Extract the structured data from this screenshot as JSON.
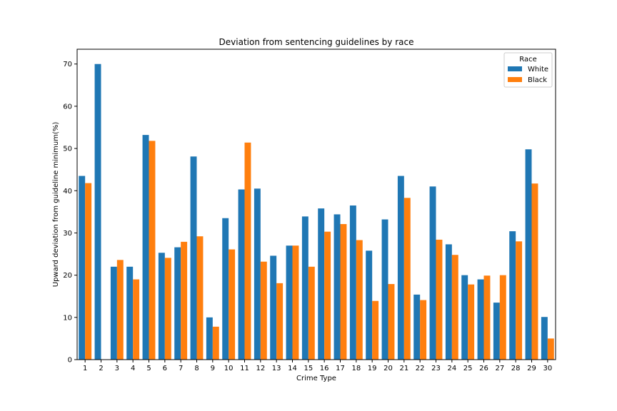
{
  "chart_data": {
    "type": "bar",
    "title": "Deviation from sentencing guidelines by race",
    "xlabel": "Crime Type",
    "ylabel": "Upward deviation from guideline minimum(%)",
    "categories": [
      "1",
      "2",
      "3",
      "4",
      "5",
      "6",
      "7",
      "8",
      "9",
      "10",
      "11",
      "12",
      "13",
      "14",
      "15",
      "16",
      "17",
      "18",
      "19",
      "20",
      "21",
      "22",
      "23",
      "24",
      "25",
      "26",
      "27",
      "28",
      "29",
      "30"
    ],
    "ylim": [
      0,
      73.5
    ],
    "yticks": [
      0,
      10,
      20,
      30,
      40,
      50,
      60,
      70
    ],
    "grid": false,
    "legend": {
      "title": "Race",
      "position": "top-right"
    },
    "series": [
      {
        "name": "White",
        "color": "#1f77b4",
        "values": [
          43.5,
          70.0,
          22.0,
          22.0,
          53.2,
          25.3,
          26.6,
          48.1,
          10.0,
          33.5,
          40.3,
          40.5,
          24.6,
          27.0,
          33.9,
          35.8,
          34.4,
          36.5,
          25.8,
          33.2,
          43.5,
          15.4,
          41.0,
          27.3,
          20.0,
          19.0,
          13.5,
          30.4,
          49.8,
          10.1
        ]
      },
      {
        "name": "Black",
        "color": "#ff7f0e",
        "values": [
          41.8,
          null,
          23.6,
          19.0,
          51.8,
          24.1,
          27.9,
          29.2,
          7.8,
          26.1,
          51.4,
          23.2,
          18.1,
          27.0,
          22.0,
          30.3,
          32.1,
          28.3,
          13.9,
          17.9,
          38.3,
          14.1,
          28.4,
          24.8,
          17.8,
          19.9,
          20.0,
          28.0,
          41.7,
          5.0
        ]
      }
    ]
  }
}
